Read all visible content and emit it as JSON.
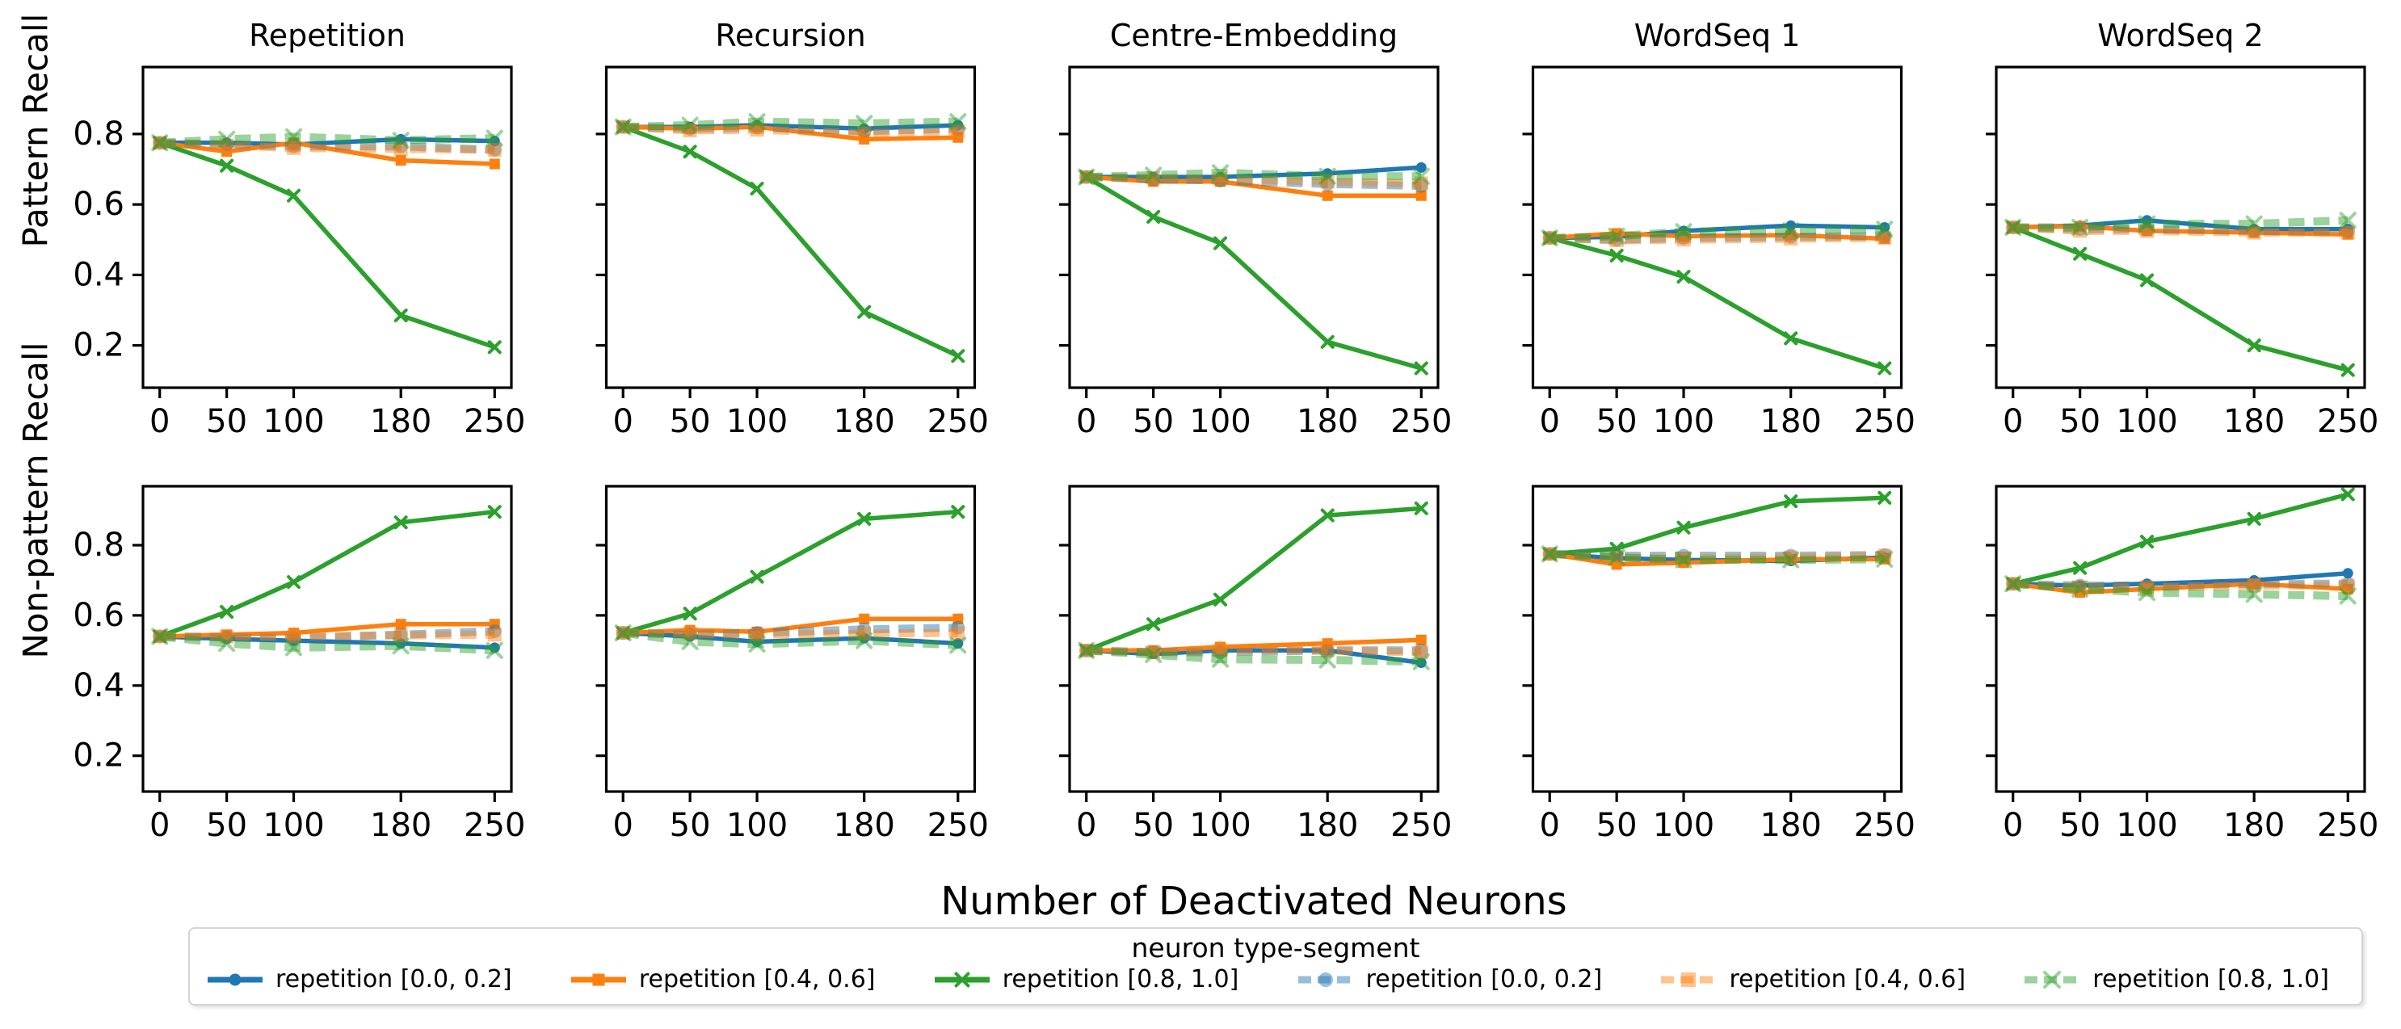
{
  "figure": {
    "xlabel": "Number of Deactivated Neurons",
    "ylabel_top": "Pattern Recall",
    "ylabel_bottom": "Non-pattern Recall",
    "col_titles": [
      "Repetition",
      "Recursion",
      "Centre-Embedding",
      "WordSeq 1",
      "WordSeq 2"
    ],
    "x_tick_labels": [
      "0",
      "50",
      "100",
      "180",
      "250"
    ],
    "y_tick_labels": [
      "0.2",
      "0.4",
      "0.6",
      "0.8"
    ]
  },
  "legend": {
    "title": "neuron type-segment",
    "entries": [
      {
        "label": "repetition [0.0, 0.2]",
        "color": "#1f77b4",
        "dashed": false,
        "marker": "circle"
      },
      {
        "label": "repetition [0.4, 0.6]",
        "color": "#ff7f0e",
        "dashed": false,
        "marker": "square"
      },
      {
        "label": "repetition [0.8, 1.0]",
        "color": "#2ca02c",
        "dashed": false,
        "marker": "x"
      },
      {
        "label": "repetition [0.0, 0.2]",
        "color": "#1f77b4",
        "dashed": true,
        "marker": "circle"
      },
      {
        "label": "repetition [0.4, 0.6]",
        "color": "#ff7f0e",
        "dashed": true,
        "marker": "square"
      },
      {
        "label": "repetition [0.8, 1.0]",
        "color": "#2ca02c",
        "dashed": true,
        "marker": "x"
      }
    ]
  },
  "chart_data": [
    {
      "type": "line",
      "row": 0,
      "col": 0,
      "title": "Repetition",
      "ylabel": "Pattern Recall",
      "x": [
        0,
        50,
        100,
        180,
        250
      ],
      "xlim": [
        -12.5,
        262.5
      ],
      "ylim": [
        0.08,
        0.99
      ],
      "x_ticks": [
        0,
        50,
        100,
        180,
        250
      ],
      "y_ticks": [
        0.2,
        0.4,
        0.6,
        0.8
      ],
      "series": [
        {
          "name": "repetition [0.0, 0.2]",
          "values": [
            0.775,
            0.775,
            0.77,
            0.785,
            0.78
          ]
        },
        {
          "name": "repetition [0.4, 0.6]",
          "values": [
            0.775,
            0.75,
            0.775,
            0.725,
            0.715
          ]
        },
        {
          "name": "repetition [0.8, 1.0]",
          "values": [
            0.775,
            0.71,
            0.625,
            0.285,
            0.195
          ]
        },
        {
          "name": "repetition [0.0, 0.2] (dashed)",
          "values": [
            0.775,
            0.77,
            0.765,
            0.765,
            0.755
          ]
        },
        {
          "name": "repetition [0.4, 0.6] (dashed)",
          "values": [
            0.775,
            0.768,
            0.76,
            0.758,
            0.755
          ]
        },
        {
          "name": "repetition [0.8, 1.0] (dashed)",
          "values": [
            0.775,
            0.785,
            0.792,
            0.782,
            0.788
          ]
        }
      ]
    },
    {
      "type": "line",
      "row": 0,
      "col": 1,
      "title": "Recursion",
      "ylabel": "Pattern Recall",
      "x": [
        0,
        50,
        100,
        180,
        250
      ],
      "xlim": [
        -12.5,
        262.5
      ],
      "ylim": [
        0.08,
        0.99
      ],
      "x_ticks": [
        0,
        50,
        100,
        180,
        250
      ],
      "y_ticks": [
        0.2,
        0.4,
        0.6,
        0.8
      ],
      "series": [
        {
          "name": "repetition [0.0, 0.2]",
          "values": [
            0.82,
            0.82,
            0.825,
            0.815,
            0.825
          ]
        },
        {
          "name": "repetition [0.4, 0.6]",
          "values": [
            0.82,
            0.815,
            0.82,
            0.785,
            0.79
          ]
        },
        {
          "name": "repetition [0.8, 1.0]",
          "values": [
            0.82,
            0.75,
            0.645,
            0.295,
            0.17
          ]
        },
        {
          "name": "repetition [0.0, 0.2] (dashed)",
          "values": [
            0.82,
            0.815,
            0.818,
            0.808,
            0.815
          ]
        },
        {
          "name": "repetition [0.4, 0.6] (dashed)",
          "values": [
            0.82,
            0.81,
            0.812,
            0.802,
            0.808
          ]
        },
        {
          "name": "repetition [0.8, 1.0] (dashed)",
          "values": [
            0.82,
            0.825,
            0.835,
            0.83,
            0.835
          ]
        }
      ]
    },
    {
      "type": "line",
      "row": 0,
      "col": 2,
      "title": "Centre-Embedding",
      "ylabel": "Pattern Recall",
      "x": [
        0,
        50,
        100,
        180,
        250
      ],
      "xlim": [
        -12.5,
        262.5
      ],
      "ylim": [
        0.08,
        0.99
      ],
      "x_ticks": [
        0,
        50,
        100,
        180,
        250
      ],
      "y_ticks": [
        0.2,
        0.4,
        0.6,
        0.8
      ],
      "series": [
        {
          "name": "repetition [0.0, 0.2]",
          "values": [
            0.678,
            0.678,
            0.678,
            0.688,
            0.705
          ]
        },
        {
          "name": "repetition [0.4, 0.6]",
          "values": [
            0.678,
            0.665,
            0.665,
            0.625,
            0.625
          ]
        },
        {
          "name": "repetition [0.8, 1.0]",
          "values": [
            0.678,
            0.565,
            0.49,
            0.21,
            0.135
          ]
        },
        {
          "name": "repetition [0.0, 0.2] (dashed)",
          "values": [
            0.678,
            0.672,
            0.668,
            0.658,
            0.653
          ]
        },
        {
          "name": "repetition [0.4, 0.6] (dashed)",
          "values": [
            0.678,
            0.675,
            0.673,
            0.665,
            0.66
          ]
        },
        {
          "name": "repetition [0.8, 1.0] (dashed)",
          "values": [
            0.678,
            0.683,
            0.69,
            0.68,
            0.68
          ]
        }
      ]
    },
    {
      "type": "line",
      "row": 0,
      "col": 3,
      "title": "WordSeq 1",
      "ylabel": "Pattern Recall",
      "x": [
        0,
        50,
        100,
        180,
        250
      ],
      "xlim": [
        -12.5,
        262.5
      ],
      "ylim": [
        0.08,
        0.99
      ],
      "x_ticks": [
        0,
        50,
        100,
        180,
        250
      ],
      "y_ticks": [
        0.2,
        0.4,
        0.6,
        0.8
      ],
      "series": [
        {
          "name": "repetition [0.0, 0.2]",
          "values": [
            0.505,
            0.508,
            0.525,
            0.54,
            0.535
          ]
        },
        {
          "name": "repetition [0.4, 0.6]",
          "values": [
            0.505,
            0.518,
            0.51,
            0.513,
            0.503
          ]
        },
        {
          "name": "repetition [0.8, 1.0]",
          "values": [
            0.505,
            0.455,
            0.395,
            0.22,
            0.135
          ]
        },
        {
          "name": "repetition [0.0, 0.2] (dashed)",
          "values": [
            0.505,
            0.5,
            0.505,
            0.508,
            0.51
          ]
        },
        {
          "name": "repetition [0.4, 0.6] (dashed)",
          "values": [
            0.505,
            0.498,
            0.5,
            0.503,
            0.505
          ]
        },
        {
          "name": "repetition [0.8, 1.0] (dashed)",
          "values": [
            0.505,
            0.51,
            0.523,
            0.525,
            0.53
          ]
        }
      ]
    },
    {
      "type": "line",
      "row": 0,
      "col": 4,
      "title": "WordSeq 2",
      "ylabel": "Pattern Recall",
      "x": [
        0,
        50,
        100,
        180,
        250
      ],
      "xlim": [
        -12.5,
        262.5
      ],
      "ylim": [
        0.08,
        0.99
      ],
      "x_ticks": [
        0,
        50,
        100,
        180,
        250
      ],
      "y_ticks": [
        0.2,
        0.4,
        0.6,
        0.8
      ],
      "series": [
        {
          "name": "repetition [0.0, 0.2]",
          "values": [
            0.535,
            0.54,
            0.555,
            0.53,
            0.53
          ]
        },
        {
          "name": "repetition [0.4, 0.6]",
          "values": [
            0.535,
            0.538,
            0.525,
            0.52,
            0.515
          ]
        },
        {
          "name": "repetition [0.8, 1.0]",
          "values": [
            0.535,
            0.46,
            0.385,
            0.2,
            0.13
          ]
        },
        {
          "name": "repetition [0.0, 0.2] (dashed)",
          "values": [
            0.535,
            0.53,
            0.53,
            0.525,
            0.525
          ]
        },
        {
          "name": "repetition [0.4, 0.6] (dashed)",
          "values": [
            0.535,
            0.525,
            0.525,
            0.52,
            0.52
          ]
        },
        {
          "name": "repetition [0.8, 1.0] (dashed)",
          "values": [
            0.535,
            0.535,
            0.545,
            0.545,
            0.555
          ]
        }
      ]
    },
    {
      "type": "line",
      "row": 1,
      "col": 0,
      "title": "Repetition",
      "ylabel": "Non-pattern Recall",
      "x": [
        0,
        50,
        100,
        180,
        250
      ],
      "xlim": [
        -12.5,
        262.5
      ],
      "ylim": [
        0.098,
        0.968
      ],
      "x_ticks": [
        0,
        50,
        100,
        180,
        250
      ],
      "y_ticks": [
        0.2,
        0.4,
        0.6,
        0.8
      ],
      "series": [
        {
          "name": "repetition [0.0, 0.2]",
          "values": [
            0.54,
            0.533,
            0.528,
            0.52,
            0.508
          ]
        },
        {
          "name": "repetition [0.4, 0.6]",
          "values": [
            0.54,
            0.545,
            0.55,
            0.575,
            0.575
          ]
        },
        {
          "name": "repetition [0.8, 1.0]",
          "values": [
            0.54,
            0.61,
            0.695,
            0.865,
            0.895
          ]
        },
        {
          "name": "repetition [0.0, 0.2] (dashed)",
          "values": [
            0.54,
            0.537,
            0.535,
            0.545,
            0.555
          ]
        },
        {
          "name": "repetition [0.4, 0.6] (dashed)",
          "values": [
            0.54,
            0.54,
            0.54,
            0.543,
            0.545
          ]
        },
        {
          "name": "repetition [0.8, 1.0] (dashed)",
          "values": [
            0.54,
            0.52,
            0.508,
            0.513,
            0.5
          ]
        }
      ]
    },
    {
      "type": "line",
      "row": 1,
      "col": 1,
      "title": "Recursion",
      "ylabel": "Non-pattern Recall",
      "x": [
        0,
        50,
        100,
        180,
        250
      ],
      "xlim": [
        -12.5,
        262.5
      ],
      "ylim": [
        0.098,
        0.968
      ],
      "x_ticks": [
        0,
        50,
        100,
        180,
        250
      ],
      "y_ticks": [
        0.2,
        0.4,
        0.6,
        0.8
      ],
      "series": [
        {
          "name": "repetition [0.0, 0.2]",
          "values": [
            0.55,
            0.54,
            0.525,
            0.535,
            0.52
          ]
        },
        {
          "name": "repetition [0.4, 0.6]",
          "values": [
            0.55,
            0.558,
            0.553,
            0.59,
            0.59
          ]
        },
        {
          "name": "repetition [0.8, 1.0]",
          "values": [
            0.55,
            0.605,
            0.71,
            0.875,
            0.895
          ]
        },
        {
          "name": "repetition [0.0, 0.2] (dashed)",
          "values": [
            0.55,
            0.545,
            0.55,
            0.56,
            0.565
          ]
        },
        {
          "name": "repetition [0.4, 0.6] (dashed)",
          "values": [
            0.55,
            0.548,
            0.545,
            0.548,
            0.55
          ]
        },
        {
          "name": "repetition [0.8, 1.0] (dashed)",
          "values": [
            0.55,
            0.525,
            0.518,
            0.528,
            0.515
          ]
        }
      ]
    },
    {
      "type": "line",
      "row": 1,
      "col": 2,
      "title": "Centre-Embedding",
      "ylabel": "Non-pattern Recall",
      "x": [
        0,
        50,
        100,
        180,
        250
      ],
      "xlim": [
        -12.5,
        262.5
      ],
      "ylim": [
        0.098,
        0.968
      ],
      "x_ticks": [
        0,
        50,
        100,
        180,
        250
      ],
      "y_ticks": [
        0.2,
        0.4,
        0.6,
        0.8
      ],
      "series": [
        {
          "name": "repetition [0.0, 0.2]",
          "values": [
            0.5,
            0.49,
            0.5,
            0.5,
            0.465
          ]
        },
        {
          "name": "repetition [0.4, 0.6]",
          "values": [
            0.5,
            0.5,
            0.51,
            0.52,
            0.53
          ]
        },
        {
          "name": "repetition [0.8, 1.0]",
          "values": [
            0.5,
            0.575,
            0.645,
            0.885,
            0.905
          ]
        },
        {
          "name": "repetition [0.0, 0.2] (dashed)",
          "values": [
            0.5,
            0.495,
            0.495,
            0.5,
            0.5
          ]
        },
        {
          "name": "repetition [0.4, 0.6] (dashed)",
          "values": [
            0.5,
            0.495,
            0.5,
            0.5,
            0.495
          ]
        },
        {
          "name": "repetition [0.8, 1.0] (dashed)",
          "values": [
            0.5,
            0.488,
            0.475,
            0.473,
            0.468
          ]
        }
      ]
    },
    {
      "type": "line",
      "row": 1,
      "col": 3,
      "title": "WordSeq 1",
      "ylabel": "Non-pattern Recall",
      "x": [
        0,
        50,
        100,
        180,
        250
      ],
      "xlim": [
        -12.5,
        262.5
      ],
      "ylim": [
        0.098,
        0.968
      ],
      "x_ticks": [
        0,
        50,
        100,
        180,
        250
      ],
      "y_ticks": [
        0.2,
        0.4,
        0.6,
        0.8
      ],
      "series": [
        {
          "name": "repetition [0.0, 0.2]",
          "values": [
            0.775,
            0.763,
            0.758,
            0.755,
            0.765
          ]
        },
        {
          "name": "repetition [0.4, 0.6]",
          "values": [
            0.775,
            0.745,
            0.75,
            0.76,
            0.76
          ]
        },
        {
          "name": "repetition [0.8, 1.0]",
          "values": [
            0.775,
            0.79,
            0.85,
            0.925,
            0.935
          ]
        },
        {
          "name": "repetition [0.0, 0.2] (dashed)",
          "values": [
            0.775,
            0.77,
            0.77,
            0.77,
            0.772
          ]
        },
        {
          "name": "repetition [0.4, 0.6] (dashed)",
          "values": [
            0.775,
            0.765,
            0.763,
            0.765,
            0.77
          ]
        },
        {
          "name": "repetition [0.8, 1.0] (dashed)",
          "values": [
            0.775,
            0.765,
            0.758,
            0.758,
            0.76
          ]
        }
      ]
    },
    {
      "type": "line",
      "row": 1,
      "col": 4,
      "title": "WordSeq 2",
      "ylabel": "Non-pattern Recall",
      "x": [
        0,
        50,
        100,
        180,
        250
      ],
      "xlim": [
        -12.5,
        262.5
      ],
      "ylim": [
        0.098,
        0.968
      ],
      "x_ticks": [
        0,
        50,
        100,
        180,
        250
      ],
      "y_ticks": [
        0.2,
        0.4,
        0.6,
        0.8
      ],
      "series": [
        {
          "name": "repetition [0.0, 0.2]",
          "values": [
            0.69,
            0.685,
            0.69,
            0.7,
            0.72
          ]
        },
        {
          "name": "repetition [0.4, 0.6]",
          "values": [
            0.69,
            0.665,
            0.675,
            0.69,
            0.675
          ]
        },
        {
          "name": "repetition [0.8, 1.0]",
          "values": [
            0.69,
            0.735,
            0.81,
            0.875,
            0.945
          ]
        },
        {
          "name": "repetition [0.0, 0.2] (dashed)",
          "values": [
            0.69,
            0.685,
            0.685,
            0.69,
            0.69
          ]
        },
        {
          "name": "repetition [0.4, 0.6] (dashed)",
          "values": [
            0.69,
            0.68,
            0.68,
            0.685,
            0.685
          ]
        },
        {
          "name": "repetition [0.8, 1.0] (dashed)",
          "values": [
            0.69,
            0.675,
            0.665,
            0.66,
            0.655
          ]
        }
      ]
    }
  ]
}
